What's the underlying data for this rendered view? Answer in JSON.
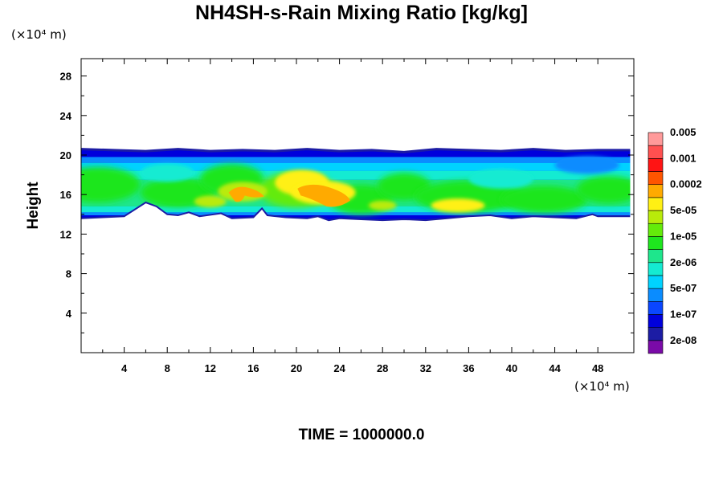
{
  "title": "NH4SH-s-Rain Mixing Ratio [kg/kg]",
  "y_unit_label": "(×10⁴ m)",
  "x_unit_label": "(×10⁴ m)",
  "footer_text": "TIME = 1000000.0",
  "chart_data": {
    "type": "heatmap",
    "title": "NH4SH-s-Rain Mixing Ratio [kg/kg]",
    "xlabel": "",
    "ylabel": "Height",
    "x_unit": "(×10⁴ m)",
    "y_unit": "(×10⁴ m)",
    "xlim": [
      0,
      51
    ],
    "ylim": [
      0,
      30
    ],
    "x_ticks": [
      4,
      8,
      12,
      16,
      20,
      24,
      28,
      32,
      36,
      40,
      44,
      48
    ],
    "y_ticks": [
      4,
      8,
      12,
      16,
      20,
      24,
      28
    ],
    "grid": false,
    "colorbar": {
      "colors": [
        "#7a0aa8",
        "#1c1ca4",
        "#0000dc",
        "#0a46ff",
        "#0a8cff",
        "#00d2ff",
        "#14ebd2",
        "#1ee68c",
        "#1ee61e",
        "#64eb0a",
        "#b9eb0a",
        "#fff014",
        "#ffaa00",
        "#ff5500",
        "#ff1414",
        "#ff5050",
        "#ff9a9a"
      ],
      "labels": [
        "2e-08",
        "1e-07",
        "5e-07",
        "2e-06",
        "1e-05",
        "5e-05",
        "0.0002",
        "0.001",
        "0.005"
      ]
    },
    "layer": {
      "description_x": "0 to 51",
      "top_profile": [
        [
          0,
          20.6
        ],
        [
          3,
          20.5
        ],
        [
          6,
          20.4
        ],
        [
          9,
          20.6
        ],
        [
          12,
          20.4
        ],
        [
          15,
          20.5
        ],
        [
          18,
          20.4
        ],
        [
          21,
          20.6
        ],
        [
          24,
          20.4
        ],
        [
          27,
          20.5
        ],
        [
          30,
          20.3
        ],
        [
          33,
          20.6
        ],
        [
          36,
          20.5
        ],
        [
          39,
          20.4
        ],
        [
          42,
          20.6
        ],
        [
          45,
          20.4
        ],
        [
          48,
          20.5
        ],
        [
          51,
          20.5
        ]
      ],
      "bottom_profile": [
        [
          0,
          13.6
        ],
        [
          2,
          13.7
        ],
        [
          4,
          13.8
        ],
        [
          6,
          15.2
        ],
        [
          7,
          14.8
        ],
        [
          8,
          14.0
        ],
        [
          9,
          13.9
        ],
        [
          10,
          14.2
        ],
        [
          11,
          13.8
        ],
        [
          13,
          14.1
        ],
        [
          14,
          13.6
        ],
        [
          16,
          13.7
        ],
        [
          16.8,
          14.6
        ],
        [
          17.3,
          13.9
        ],
        [
          19,
          13.7
        ],
        [
          21,
          13.6
        ],
        [
          22,
          13.8
        ],
        [
          23,
          13.4
        ],
        [
          24,
          13.6
        ],
        [
          26,
          13.5
        ],
        [
          28,
          13.4
        ],
        [
          30,
          13.5
        ],
        [
          32,
          13.4
        ],
        [
          34,
          13.6
        ],
        [
          36,
          13.8
        ],
        [
          38,
          13.9
        ],
        [
          40,
          13.6
        ],
        [
          42,
          13.8
        ],
        [
          44,
          13.7
        ],
        [
          46,
          13.6
        ],
        [
          47.5,
          14.0
        ],
        [
          48,
          13.8
        ],
        [
          51,
          13.8
        ]
      ]
    }
  }
}
